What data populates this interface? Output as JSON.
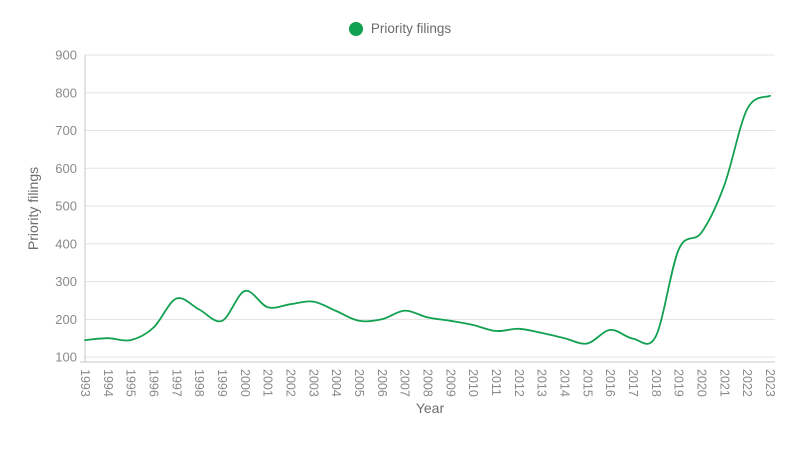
{
  "chart_data": {
    "type": "line",
    "title": "",
    "xlabel": "Year",
    "ylabel": "Priority filings",
    "legend": [
      "Priority filings"
    ],
    "legend_position": "top-center",
    "grid": true,
    "smooth": true,
    "x": [
      1993,
      1994,
      1995,
      1996,
      1997,
      1998,
      1999,
      2000,
      2001,
      2002,
      2003,
      2004,
      2005,
      2006,
      2007,
      2008,
      2009,
      2010,
      2011,
      2012,
      2013,
      2014,
      2015,
      2016,
      2017,
      2018,
      2019,
      2020,
      2021,
      2022,
      2023
    ],
    "series": [
      {
        "name": "Priority filings",
        "values": [
          145,
          150,
          145,
          178,
          255,
          226,
          196,
          275,
          232,
          240,
          247,
          222,
          196,
          200,
          223,
          205,
          196,
          185,
          169,
          175,
          164,
          150,
          136,
          172,
          149,
          155,
          385,
          430,
          555,
          757,
          792
        ]
      }
    ],
    "yticks": [
      100,
      200,
      300,
      400,
      500,
      600,
      700,
      800,
      900
    ],
    "ylim": [
      87,
      900
    ],
    "colors": {
      "line": "#12a150",
      "legend_marker": "#12a150",
      "grid_line": "#e3e3e3",
      "axis_line": "#c7c7c7",
      "tick_label": "#8a8a8a",
      "axis_title": "#6e6e6e"
    }
  }
}
